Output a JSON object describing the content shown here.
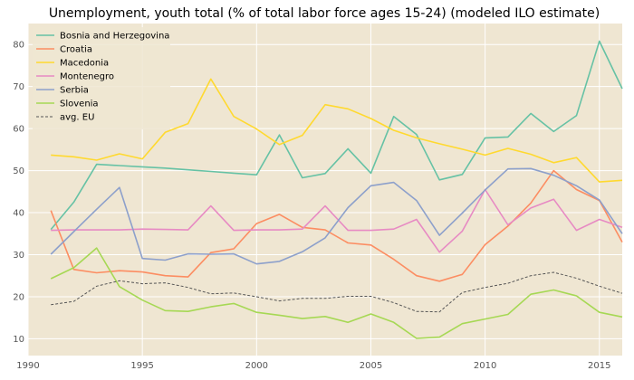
{
  "chart_data": {
    "type": "line",
    "title": "Unemployment, youth total (% of total labor force ages 15-24) (modeled ILO estimate)",
    "xlabel": "",
    "ylabel": "",
    "xlim": [
      1990,
      2016
    ],
    "ylim": [
      6,
      85
    ],
    "xticks": [
      1990,
      1995,
      2000,
      2005,
      2010,
      2015
    ],
    "yticks": [
      10,
      20,
      30,
      40,
      50,
      60,
      70,
      80
    ],
    "grid": true,
    "legend_position": "top-left",
    "background": "#efe6d2",
    "x": [
      1991,
      1992,
      1993,
      1994,
      1995,
      1996,
      1997,
      1998,
      1999,
      2000,
      2001,
      2002,
      2003,
      2004,
      2005,
      2006,
      2007,
      2008,
      2009,
      2010,
      2011,
      2012,
      2013,
      2014,
      2015,
      2016
    ],
    "series": [
      {
        "name": "Bosnia and Herzegovina",
        "color": "#66c2a5",
        "dashed": false,
        "values": [
          36.0,
          42.5,
          51.5,
          51.2,
          50.9,
          50.6,
          50.2,
          49.8,
          49.4,
          49.0,
          58.5,
          48.3,
          49.3,
          55.2,
          49.4,
          62.9,
          58.6,
          47.8,
          49.1,
          57.8,
          58.0,
          63.6,
          59.3,
          63.1,
          80.8,
          69.5
        ]
      },
      {
        "name": "Croatia",
        "color": "#fc8d62",
        "dashed": false,
        "values": [
          40.5,
          26.5,
          25.7,
          26.2,
          25.9,
          25.0,
          24.7,
          30.5,
          31.4,
          37.4,
          39.6,
          36.5,
          35.9,
          32.8,
          32.3,
          28.9,
          25.0,
          23.7,
          25.3,
          32.4,
          36.8,
          42.3,
          50.0,
          45.5,
          42.9,
          33.0
        ]
      },
      {
        "name": "Macedonia",
        "color": "#ffd92f",
        "dashed": false,
        "values": [
          53.7,
          53.3,
          52.5,
          54.0,
          52.8,
          59.1,
          61.2,
          71.8,
          62.9,
          59.9,
          56.2,
          58.4,
          65.7,
          64.7,
          62.4,
          59.6,
          57.8,
          56.4,
          55.1,
          53.7,
          55.3,
          53.9,
          51.9,
          53.1,
          47.3,
          47.7
        ]
      },
      {
        "name": "Montenegro",
        "color": "#e78ac3",
        "dashed": false,
        "values": [
          35.8,
          35.9,
          35.9,
          35.9,
          36.1,
          36.0,
          35.9,
          41.6,
          35.8,
          35.9,
          35.9,
          36.1,
          41.6,
          35.8,
          35.8,
          36.1,
          38.4,
          30.6,
          35.6,
          45.5,
          37.1,
          41.1,
          43.2,
          35.8,
          38.4,
          36.5
        ]
      },
      {
        "name": "Serbia",
        "color": "#8da0cb",
        "dashed": false,
        "values": [
          30.1,
          35.5,
          40.8,
          46.0,
          29.1,
          28.7,
          30.2,
          30.1,
          30.2,
          27.8,
          28.4,
          30.7,
          34.0,
          41.2,
          46.4,
          47.2,
          42.9,
          34.6,
          39.9,
          45.4,
          50.4,
          50.5,
          48.9,
          46.4,
          43.0,
          35.0
        ]
      },
      {
        "name": "Slovenia",
        "color": "#a6d854",
        "dashed": false,
        "values": [
          24.3,
          26.9,
          31.6,
          22.4,
          19.2,
          16.7,
          16.5,
          17.6,
          18.4,
          16.3,
          15.6,
          14.8,
          15.3,
          13.9,
          15.9,
          13.9,
          10.1,
          10.4,
          13.6,
          14.7,
          15.8,
          20.6,
          21.6,
          20.2,
          16.3,
          15.2
        ]
      },
      {
        "name": "avg. EU",
        "color": "#555555",
        "dashed": true,
        "values": [
          18.1,
          18.9,
          22.5,
          23.8,
          23.1,
          23.3,
          22.2,
          20.7,
          20.9,
          20.0,
          19.0,
          19.6,
          19.6,
          20.1,
          20.1,
          18.6,
          16.5,
          16.4,
          21.0,
          22.2,
          23.2,
          25.0,
          25.8,
          24.4,
          22.5,
          20.8
        ]
      }
    ]
  }
}
